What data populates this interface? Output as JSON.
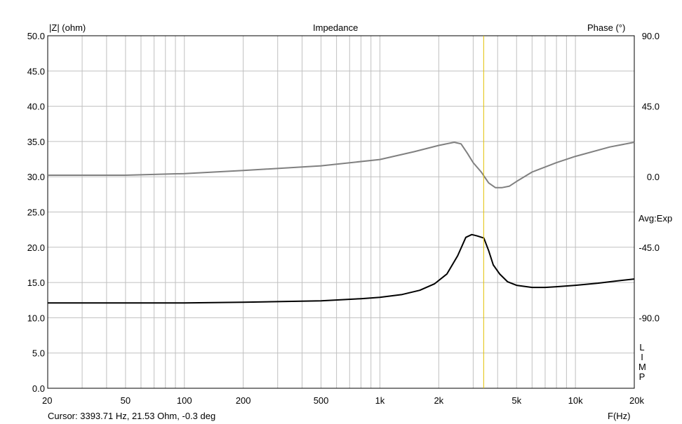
{
  "header": {
    "left_axis_title": "|Z| (ohm)",
    "title": "Impedance",
    "right_axis_title": "Phase (°)",
    "avg_label": "Avg:Exp",
    "limp_letters": [
      "L",
      "I",
      "M",
      "P"
    ]
  },
  "footer": {
    "cursor_readout": "Cursor: 3393.71 Hz, 21.53 Ohm, -0.3 deg",
    "x_axis_title": "F(Hz)"
  },
  "colors": {
    "impedance": "#000000",
    "phase": "#808080",
    "cursor": "#e0c000",
    "grid": "#c0c0c0"
  },
  "chart_data": {
    "type": "line",
    "title": "Impedance",
    "xlabel": "F(Hz)",
    "ylabel": "|Z| (ohm)",
    "y2label": "Phase (°)",
    "xscale": "log",
    "xlim": [
      20,
      20000
    ],
    "ylim": [
      0,
      50
    ],
    "y2lim": [
      -135,
      90
    ],
    "grid": true,
    "x_ticks": [
      {
        "value": 20,
        "label": "20"
      },
      {
        "value": 50,
        "label": "50"
      },
      {
        "value": 100,
        "label": "100"
      },
      {
        "value": 200,
        "label": "200"
      },
      {
        "value": 500,
        "label": "500"
      },
      {
        "value": 1000,
        "label": "1k"
      },
      {
        "value": 2000,
        "label": "2k"
      },
      {
        "value": 5000,
        "label": "5k"
      },
      {
        "value": 10000,
        "label": "10k"
      },
      {
        "value": 20000,
        "label": "20k"
      }
    ],
    "y_ticks": [
      {
        "value": 0,
        "label": "0.0"
      },
      {
        "value": 5,
        "label": "5.0"
      },
      {
        "value": 10,
        "label": "10.0"
      },
      {
        "value": 15,
        "label": "15.0"
      },
      {
        "value": 20,
        "label": "20.0"
      },
      {
        "value": 25,
        "label": "25.0"
      },
      {
        "value": 30,
        "label": "30.0"
      },
      {
        "value": 35,
        "label": "35.0"
      },
      {
        "value": 40,
        "label": "40.0"
      },
      {
        "value": 45,
        "label": "45.0"
      },
      {
        "value": 50,
        "label": "50.0"
      }
    ],
    "y2_ticks": [
      {
        "value": 90,
        "label": "90.0"
      },
      {
        "value": 45,
        "label": "45.0"
      },
      {
        "value": 0,
        "label": "0.0"
      },
      {
        "value": -45,
        "label": "-45.0"
      },
      {
        "value": -90,
        "label": "-90.0"
      }
    ],
    "cursor_x": 3393.71,
    "series": [
      {
        "axis": "left",
        "x": [
          20,
          50,
          100,
          200,
          500,
          800,
          1000,
          1300,
          1600,
          1900,
          2200,
          2500,
          2750,
          2950,
          3150,
          3400,
          3600,
          3800,
          4100,
          4500,
          5000,
          6000,
          7000,
          8000,
          10000,
          13000,
          16000,
          20000
        ],
        "values": [
          12.1,
          12.1,
          12.1,
          12.2,
          12.4,
          12.7,
          12.9,
          13.3,
          13.9,
          14.8,
          16.2,
          18.8,
          21.4,
          21.8,
          21.6,
          21.3,
          19.5,
          17.5,
          16.2,
          15.1,
          14.6,
          14.3,
          14.3,
          14.4,
          14.6,
          14.9,
          15.2,
          15.5
        ]
      },
      {
        "axis": "right",
        "x": [
          20,
          50,
          100,
          200,
          500,
          1000,
          1500,
          2000,
          2400,
          2600,
          2800,
          3000,
          3300,
          3600,
          3900,
          4200,
          4600,
          5000,
          6000,
          8000,
          10000,
          15000,
          20000
        ],
        "values": [
          1,
          1,
          2,
          4,
          7,
          11,
          16,
          20,
          22,
          21,
          15,
          9,
          3,
          -4,
          -7,
          -7,
          -6,
          -3,
          3,
          9,
          13,
          19,
          22
        ]
      }
    ]
  }
}
